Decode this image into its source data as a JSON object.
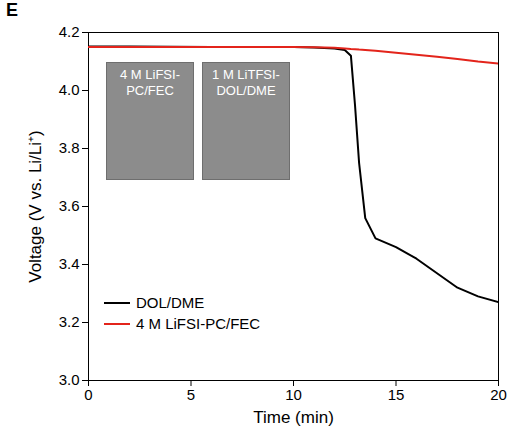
{
  "chart_data": {
    "type": "line",
    "title": "E",
    "x_label": "Time (min)",
    "y_label": "Voltage (V vs. Li/Li⁺)",
    "x": [
      0,
      2,
      4,
      6,
      8,
      10,
      11,
      12,
      12.5,
      12.8,
      13,
      13.2,
      13.5,
      14,
      15,
      16,
      17,
      18,
      19,
      20
    ],
    "series": [
      {
        "name": "DOL/DME",
        "color": "#000000",
        "values": [
          4.152,
          4.152,
          4.151,
          4.15,
          4.15,
          4.15,
          4.148,
          4.145,
          4.14,
          4.12,
          3.95,
          3.75,
          3.56,
          3.49,
          3.46,
          3.42,
          3.37,
          3.32,
          3.29,
          3.27
        ]
      },
      {
        "name": "4 M LiFSI-PC/FEC",
        "color": "#e3241b",
        "values": [
          4.15,
          4.15,
          4.15,
          4.15,
          4.15,
          4.15,
          4.149,
          4.147,
          4.145,
          4.143,
          4.142,
          4.141,
          4.14,
          4.137,
          4.13,
          4.123,
          4.116,
          4.109,
          4.1,
          4.093
        ]
      }
    ],
    "xlim": [
      0,
      20
    ],
    "xticks": [
      0,
      5,
      10,
      15,
      20
    ],
    "ylim": [
      3,
      4.2
    ],
    "yticks": [
      {
        "value": 3,
        "label": "3.0"
      },
      3.2,
      3.4,
      3.6,
      3.8,
      {
        "value": 4,
        "label": "4.0"
      },
      4.2
    ],
    "legend": "lower left",
    "annotations": [
      "4 M LiFSI-PC/FEC",
      "1 M LiTFSI-DOL/DME"
    ]
  }
}
